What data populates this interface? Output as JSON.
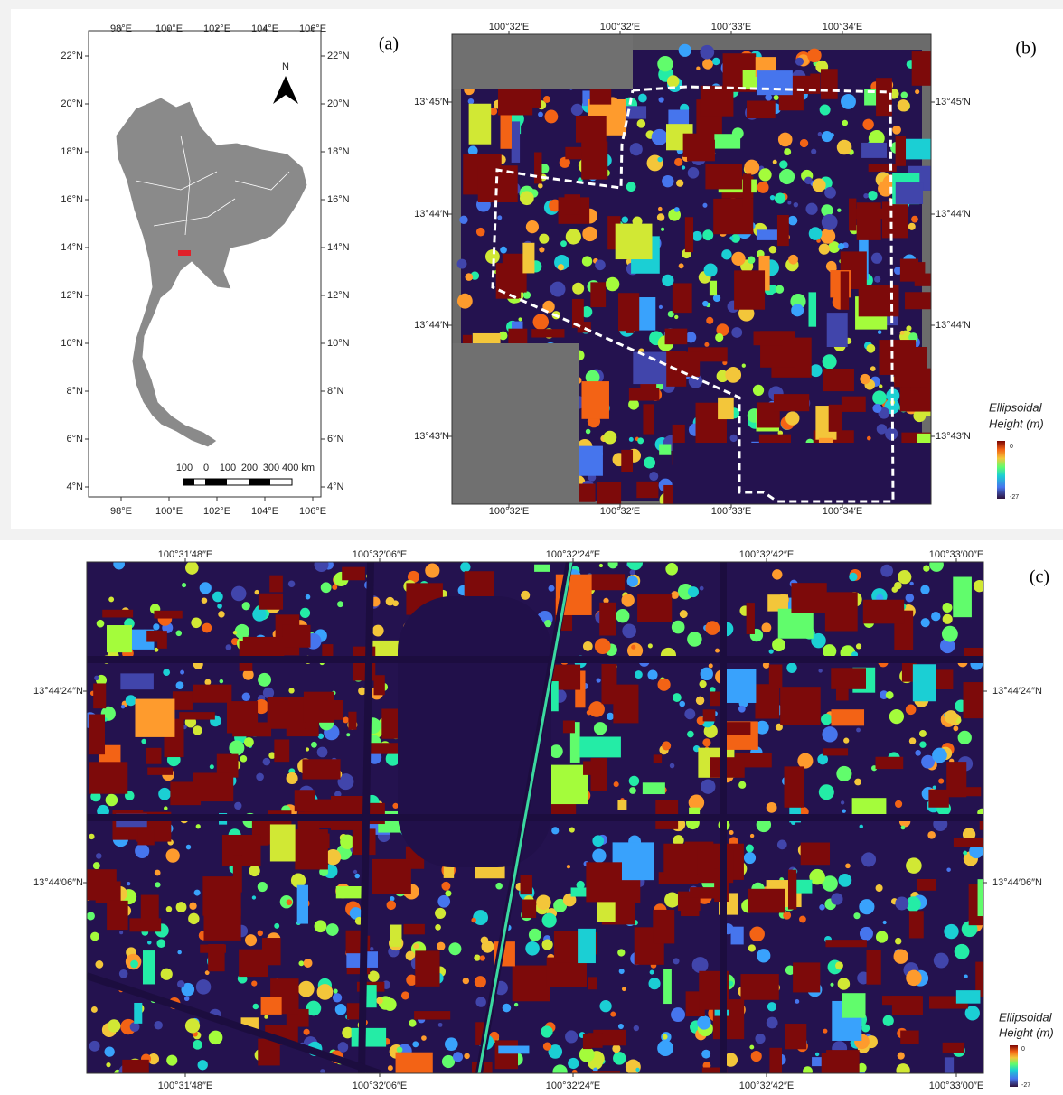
{
  "panel_a": {
    "label": "(a)",
    "x_ticks": [
      "98°E",
      "100°E",
      "102°E",
      "104°E",
      "106°E"
    ],
    "y_ticks": [
      "22°N",
      "20°N",
      "18°N",
      "16°N",
      "14°N",
      "12°N",
      "10°N",
      "8°N",
      "6°N",
      "4°N"
    ],
    "north": "N",
    "scale_bar": [
      "100",
      "0",
      "100",
      "200",
      "300",
      "400 km"
    ]
  },
  "panel_b": {
    "label": "(b)",
    "x_ticks": [
      "100°32′E",
      "100°32′E",
      "100°33′E",
      "100°34′E"
    ],
    "y_ticks": [
      "13°45′N",
      "13°44′N",
      "13°44′N",
      "13°43′N"
    ],
    "legend": {
      "title_lines": [
        "Ellipsoidal",
        "Height (m)"
      ],
      "max": "0",
      "min": "-27"
    }
  },
  "panel_c": {
    "label": "(c)",
    "x_ticks": [
      "100°31′48″E",
      "100°32′06″E",
      "100°32′24″E",
      "100°32′42″E",
      "100°33′00″E"
    ],
    "y_ticks": [
      "13°44′24″N",
      "13°44′06″N"
    ],
    "legend": {
      "title_lines": [
        "Ellipsoidal",
        "Height (m)"
      ],
      "max": "0",
      "min": "-27"
    }
  }
}
